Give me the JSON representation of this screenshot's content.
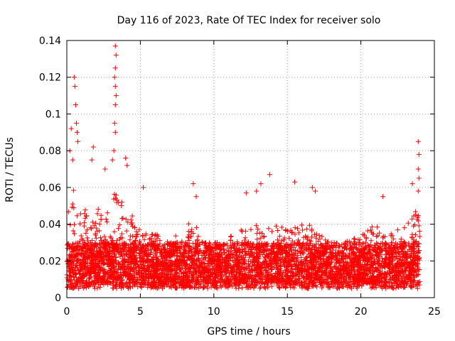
{
  "chart_data": {
    "type": "scatter",
    "title": "Day 116 of 2023, Rate Of TEC Index for receiver solo",
    "xlabel": "GPS time / hours",
    "ylabel": "ROTI / TECUs",
    "xlim": [
      0,
      25
    ],
    "ylim": [
      0,
      0.14
    ],
    "x_ticks": [
      0,
      5,
      10,
      15,
      20,
      25
    ],
    "x_tick_labels": [
      "0",
      "5",
      "10",
      "15",
      "20",
      "25"
    ],
    "y_ticks": [
      0,
      0.02,
      0.04,
      0.06,
      0.08,
      0.1,
      0.12,
      0.14
    ],
    "y_tick_labels": [
      "0",
      "0.02",
      "0.04",
      "0.06",
      "0.08",
      "0.1",
      "0.12",
      "0.14"
    ],
    "grid": true,
    "marker": "+",
    "series": [
      {
        "name": "ROTI",
        "color": "#ff0000",
        "time_range_hours": [
          0,
          24
        ],
        "baseline_range": [
          0.005,
          0.03
        ],
        "notable_points": [
          {
            "x": 0.3,
            "y": 0.092
          },
          {
            "x": 0.5,
            "y": 0.12
          },
          {
            "x": 0.55,
            "y": 0.115
          },
          {
            "x": 0.6,
            "y": 0.105
          },
          {
            "x": 0.65,
            "y": 0.095
          },
          {
            "x": 0.7,
            "y": 0.09
          },
          {
            "x": 0.75,
            "y": 0.085
          },
          {
            "x": 0.2,
            "y": 0.08
          },
          {
            "x": 0.4,
            "y": 0.075
          },
          {
            "x": 1.8,
            "y": 0.082
          },
          {
            "x": 1.7,
            "y": 0.075
          },
          {
            "x": 2.6,
            "y": 0.07
          },
          {
            "x": 3.3,
            "y": 0.137
          },
          {
            "x": 3.35,
            "y": 0.132
          },
          {
            "x": 3.3,
            "y": 0.125
          },
          {
            "x": 3.25,
            "y": 0.12
          },
          {
            "x": 3.3,
            "y": 0.115
          },
          {
            "x": 3.35,
            "y": 0.11
          },
          {
            "x": 3.3,
            "y": 0.105
          },
          {
            "x": 3.25,
            "y": 0.095
          },
          {
            "x": 3.3,
            "y": 0.09
          },
          {
            "x": 3.2,
            "y": 0.08
          },
          {
            "x": 3.1,
            "y": 0.075
          },
          {
            "x": 4.0,
            "y": 0.076
          },
          {
            "x": 4.1,
            "y": 0.072
          },
          {
            "x": 5.2,
            "y": 0.06
          },
          {
            "x": 8.6,
            "y": 0.062
          },
          {
            "x": 8.8,
            "y": 0.055
          },
          {
            "x": 12.2,
            "y": 0.057
          },
          {
            "x": 12.9,
            "y": 0.058
          },
          {
            "x": 13.2,
            "y": 0.062
          },
          {
            "x": 13.8,
            "y": 0.067
          },
          {
            "x": 15.5,
            "y": 0.063
          },
          {
            "x": 16.7,
            "y": 0.06
          },
          {
            "x": 16.9,
            "y": 0.058
          },
          {
            "x": 21.5,
            "y": 0.055
          },
          {
            "x": 23.5,
            "y": 0.062
          },
          {
            "x": 23.9,
            "y": 0.085
          },
          {
            "x": 23.95,
            "y": 0.078
          },
          {
            "x": 23.9,
            "y": 0.07
          },
          {
            "x": 23.95,
            "y": 0.065
          },
          {
            "x": 23.9,
            "y": 0.058
          }
        ]
      }
    ]
  }
}
